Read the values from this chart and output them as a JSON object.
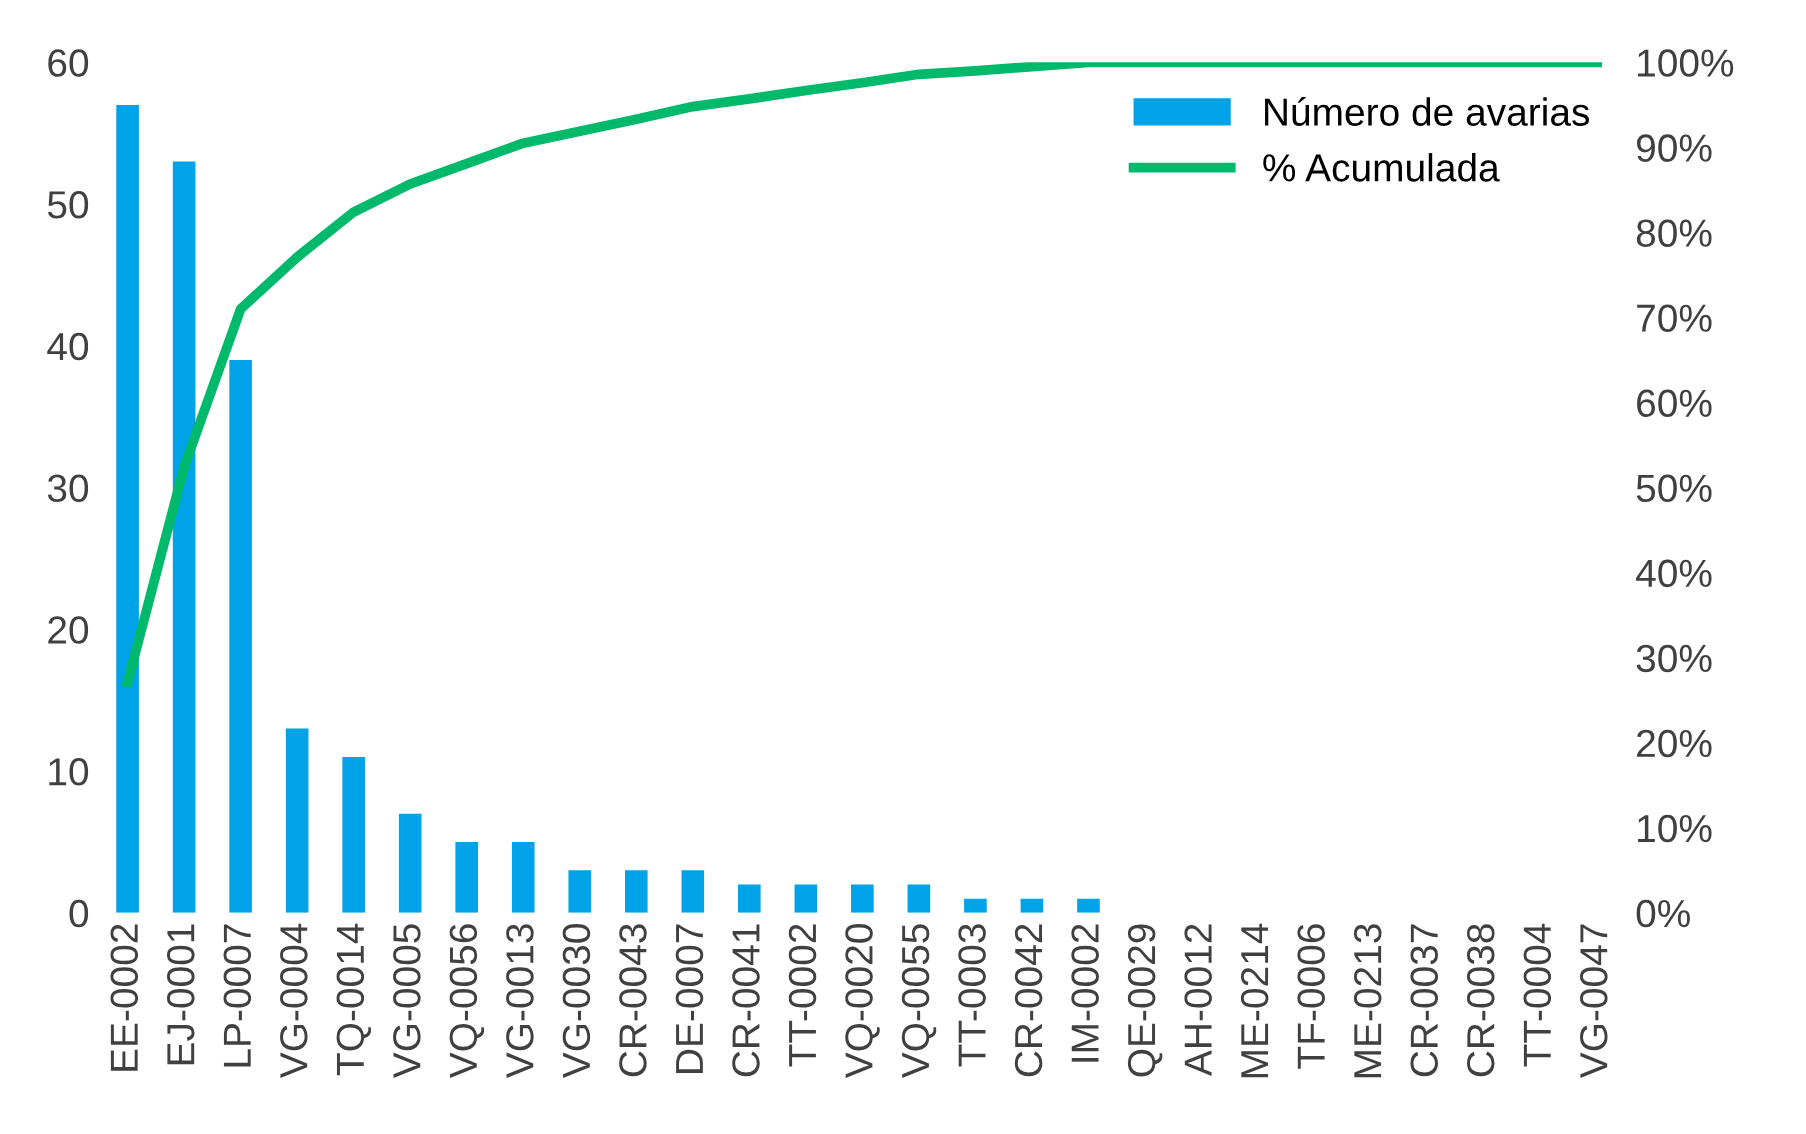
{
  "chart_data": {
    "type": "bar",
    "categories": [
      "EE-0002",
      "EJ-0001",
      "LP-0007",
      "VG-0004",
      "TQ-0014",
      "VG-0005",
      "VQ-0056",
      "VG-0013",
      "VG-0030",
      "CR-0043",
      "DE-0007",
      "CR-0041",
      "TT-0002",
      "VQ-0020",
      "VQ-0055",
      "TT-0003",
      "CR-0042",
      "IM-0002",
      "QE-0029",
      "AH-0012",
      "ME-0214",
      "TF-0006",
      "ME-0213",
      "CR-0037",
      "CR-0038",
      "TT-0004",
      "VG-0047"
    ],
    "series": [
      {
        "name": "Número de avarias",
        "color": "#00a2e8",
        "values": [
          57,
          53,
          39,
          13,
          11,
          7,
          5,
          5,
          3,
          3,
          3,
          2,
          2,
          2,
          2,
          1,
          1,
          1,
          0,
          0,
          0,
          0,
          0,
          0,
          0,
          0,
          0
        ]
      },
      {
        "name": "% Acumulada",
        "type": "line",
        "axis": "y2",
        "color": "#00b96b",
        "values": [
          27.1,
          52.4,
          71.0,
          77.1,
          82.4,
          85.7,
          88.1,
          90.5,
          91.9,
          93.3,
          94.8,
          95.7,
          96.7,
          97.6,
          98.6,
          99.0,
          99.5,
          100,
          100,
          100,
          100,
          100,
          100,
          100,
          100,
          100,
          100
        ]
      }
    ],
    "ylim": [
      0,
      60
    ],
    "yticks": [
      0,
      10,
      20,
      30,
      40,
      50,
      60
    ],
    "y2lim": [
      0,
      100
    ],
    "y2ticks": [
      {
        "value": 0,
        "label": "0%"
      },
      {
        "value": 10,
        "label": "10%"
      },
      {
        "value": 20,
        "label": "20%"
      },
      {
        "value": 30,
        "label": "30%"
      },
      {
        "value": 40,
        "label": "40%"
      },
      {
        "value": 50,
        "label": "50%"
      },
      {
        "value": 60,
        "label": "60%"
      },
      {
        "value": 70,
        "label": "70%"
      },
      {
        "value": 80,
        "label": "80%"
      },
      {
        "value": 90,
        "label": "90%"
      },
      {
        "value": 100,
        "label": "100%"
      }
    ],
    "grid": false,
    "legend": "top right"
  }
}
